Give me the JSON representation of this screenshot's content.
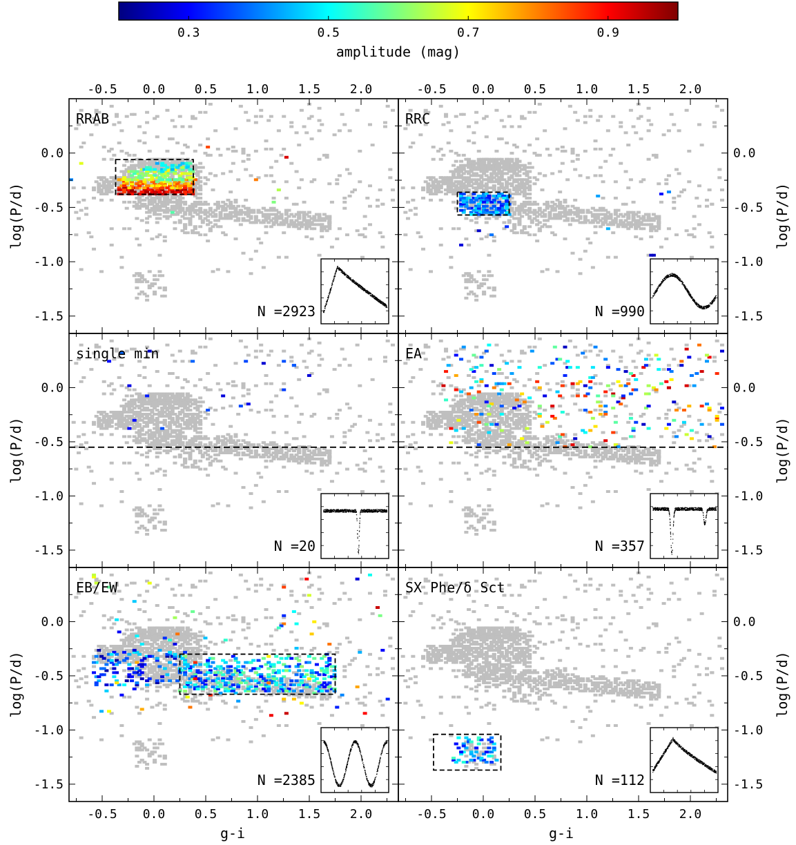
{
  "figure": {
    "colorbar": {
      "label": "amplitude (mag)",
      "range": [
        0.2,
        1.0
      ],
      "ticks": [
        0.3,
        0.5,
        0.7,
        0.9
      ],
      "tick_labels": [
        "0.3",
        "0.5",
        "0.7",
        "0.9"
      ],
      "colormap": "jet",
      "stops": [
        "#00007f",
        "#0000ff",
        "#007fff",
        "#00ffff",
        "#7fff7f",
        "#ffff00",
        "#ff7f00",
        "#ff0000",
        "#7f0000"
      ]
    },
    "x_axis": {
      "label": "g-i",
      "range": [
        -0.82,
        2.36
      ],
      "ticks": [
        -0.5,
        0.0,
        0.5,
        1.0,
        1.5,
        2.0
      ],
      "tick_labels": [
        "-0.5",
        "0.0",
        "0.5",
        "1.0",
        "1.5",
        "2.0"
      ]
    },
    "y_axis": {
      "label": "log(P/d)",
      "range": [
        -1.66,
        0.5
      ],
      "ticks": [
        0.0,
        -0.5,
        -1.0,
        -1.5
      ],
      "tick_labels": [
        "0.0",
        "-0.5",
        "-1.0",
        "-1.5"
      ]
    },
    "background_color": "#bfbfbf"
  },
  "chart_data": [
    {
      "type": "heatmap",
      "title": "RRAB",
      "count_label": "N =2923",
      "box": {
        "x": [
          -0.37,
          0.38
        ],
        "y": [
          -0.38,
          -0.06
        ]
      },
      "hline": null,
      "clusters": [
        {
          "x": [
            -0.35,
            0.38
          ],
          "y": [
            -0.38,
            -0.31
          ],
          "amp": [
            0.85,
            1.0
          ],
          "n": 130
        },
        {
          "x": [
            -0.35,
            0.38
          ],
          "y": [
            -0.32,
            -0.24
          ],
          "amp": [
            0.7,
            0.88
          ],
          "n": 110
        },
        {
          "x": [
            -0.3,
            0.38
          ],
          "y": [
            -0.26,
            -0.15
          ],
          "amp": [
            0.55,
            0.72
          ],
          "n": 100
        },
        {
          "x": [
            -0.1,
            0.36
          ],
          "y": [
            -0.16,
            -0.08
          ],
          "amp": [
            0.42,
            0.58
          ],
          "n": 40
        }
      ],
      "scatter": [
        {
          "x": [
            -0.8,
            2.3
          ],
          "y": [
            -0.6,
            0.1
          ],
          "amp": [
            0.4,
            0.95
          ],
          "n": 10
        }
      ],
      "lightcurve": "rrab"
    },
    {
      "type": "heatmap",
      "title": "RRC",
      "count_label": "N =990",
      "box": {
        "x": [
          -0.25,
          0.25
        ],
        "y": [
          -0.57,
          -0.36
        ]
      },
      "hline": null,
      "clusters": [
        {
          "x": [
            -0.24,
            0.24
          ],
          "y": [
            -0.57,
            -0.37
          ],
          "amp": [
            0.3,
            0.5
          ],
          "n": 170
        }
      ],
      "scatter": [
        {
          "x": [
            -0.8,
            2.2
          ],
          "y": [
            -0.95,
            -0.3
          ],
          "amp": [
            0.25,
            0.45
          ],
          "n": 10
        }
      ],
      "lightcurve": "rrc"
    },
    {
      "type": "heatmap",
      "title": "single min",
      "count_label": "N =20",
      "box": null,
      "hline": -0.55,
      "clusters": [],
      "scatter": [
        {
          "x": [
            -0.5,
            2.2
          ],
          "y": [
            -0.5,
            0.35
          ],
          "amp": [
            0.25,
            0.4
          ],
          "n": 20
        }
      ],
      "lightcurve": "singlemin"
    },
    {
      "type": "heatmap",
      "title": "EA",
      "count_label": "N =357",
      "box": null,
      "hline": -0.55,
      "clusters": [
        {
          "x": [
            -0.4,
            2.3
          ],
          "y": [
            -0.55,
            0.4
          ],
          "amp": [
            0.25,
            0.95
          ],
          "n": 230
        }
      ],
      "scatter": [],
      "lightcurve": "ea"
    },
    {
      "type": "heatmap",
      "title": "EB/EW",
      "count_label": "N =2385",
      "box": {
        "x": [
          0.25,
          1.75
        ],
        "y": [
          -0.67,
          -0.3
        ]
      },
      "hline": null,
      "clusters": [
        {
          "x": [
            0.25,
            1.75
          ],
          "y": [
            -0.65,
            -0.32
          ],
          "amp": [
            0.28,
            0.62
          ],
          "n": 330
        },
        {
          "x": [
            -0.6,
            0.3
          ],
          "y": [
            -0.6,
            -0.25
          ],
          "amp": [
            0.22,
            0.5
          ],
          "n": 110
        },
        {
          "x": [
            -0.7,
            2.3
          ],
          "y": [
            -0.9,
            0.45
          ],
          "amp": [
            0.25,
            0.95
          ],
          "n": 70
        }
      ],
      "scatter": [],
      "lightcurve": "ew"
    },
    {
      "type": "heatmap",
      "title": "SX Phe/δ Sct",
      "count_label": "N =112",
      "box": {
        "x": [
          -0.48,
          0.17
        ],
        "y": [
          -1.37,
          -1.04
        ]
      },
      "hline": null,
      "clusters": [
        {
          "x": [
            -0.3,
            0.12
          ],
          "y": [
            -1.3,
            -1.05
          ],
          "amp": [
            0.3,
            0.55
          ],
          "n": 55
        }
      ],
      "scatter": [],
      "lightcurve": "sxphe"
    }
  ]
}
